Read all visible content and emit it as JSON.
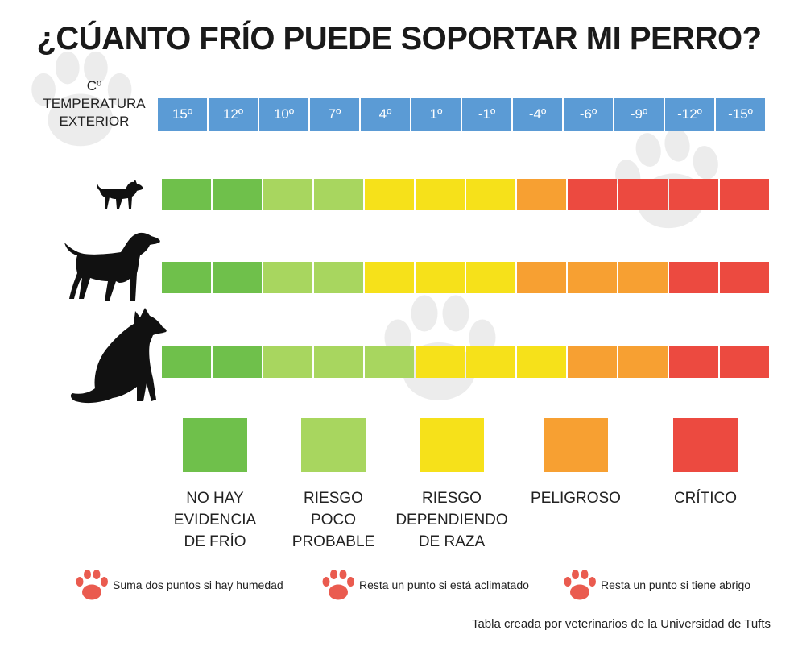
{
  "title": "¿CÚANTO FRÍO PUEDE SOPORTAR MI PERRO?",
  "temperature_label": [
    "Cº",
    "TEMPERATURA",
    "EXTERIOR"
  ],
  "colors": {
    "no_evidence": "#6fc04b",
    "unlikely": "#a8d65f",
    "breed_dependent": "#f6e11a",
    "dangerous": "#f7a032",
    "critical": "#ec4a40",
    "temp_header": "#5b9bd5",
    "paw": "#ea5b4f"
  },
  "chart_data": {
    "type": "heatmap",
    "columns": [
      "15º",
      "12º",
      "10º",
      "7º",
      "4º",
      "1º",
      "-1º",
      "-4º",
      "-6º",
      "-9º",
      "-12º",
      "-15º"
    ],
    "rows": [
      {
        "dog": "small-dog-icon",
        "levels": [
          0,
          0,
          1,
          1,
          2,
          2,
          2,
          3,
          4,
          4,
          4,
          4
        ]
      },
      {
        "dog": "medium-dog-icon",
        "levels": [
          0,
          0,
          1,
          1,
          2,
          2,
          2,
          3,
          3,
          3,
          4,
          4
        ]
      },
      {
        "dog": "large-dog-icon",
        "levels": [
          0,
          0,
          1,
          1,
          1,
          2,
          2,
          2,
          3,
          3,
          4,
          4
        ]
      }
    ],
    "legend": [
      {
        "level": 0,
        "lines": [
          "NO HAY",
          "EVIDENCIA",
          "DE FRÍO"
        ]
      },
      {
        "level": 1,
        "lines": [
          "RIESGO",
          "POCO",
          "PROBABLE"
        ]
      },
      {
        "level": 2,
        "lines": [
          "RIESGO",
          "DEPENDIENDO",
          "DE RAZA"
        ]
      },
      {
        "level": 3,
        "lines": [
          "PELIGROSO"
        ]
      },
      {
        "level": 4,
        "lines": [
          "CRÍTICO"
        ]
      }
    ]
  },
  "notes": [
    "Suma dos puntos si hay humedad",
    "Resta un punto si está aclimatado",
    "Resta un punto si tiene abrigo"
  ],
  "source": "Tabla creada por veterinarios de la Universidad de Tufts"
}
